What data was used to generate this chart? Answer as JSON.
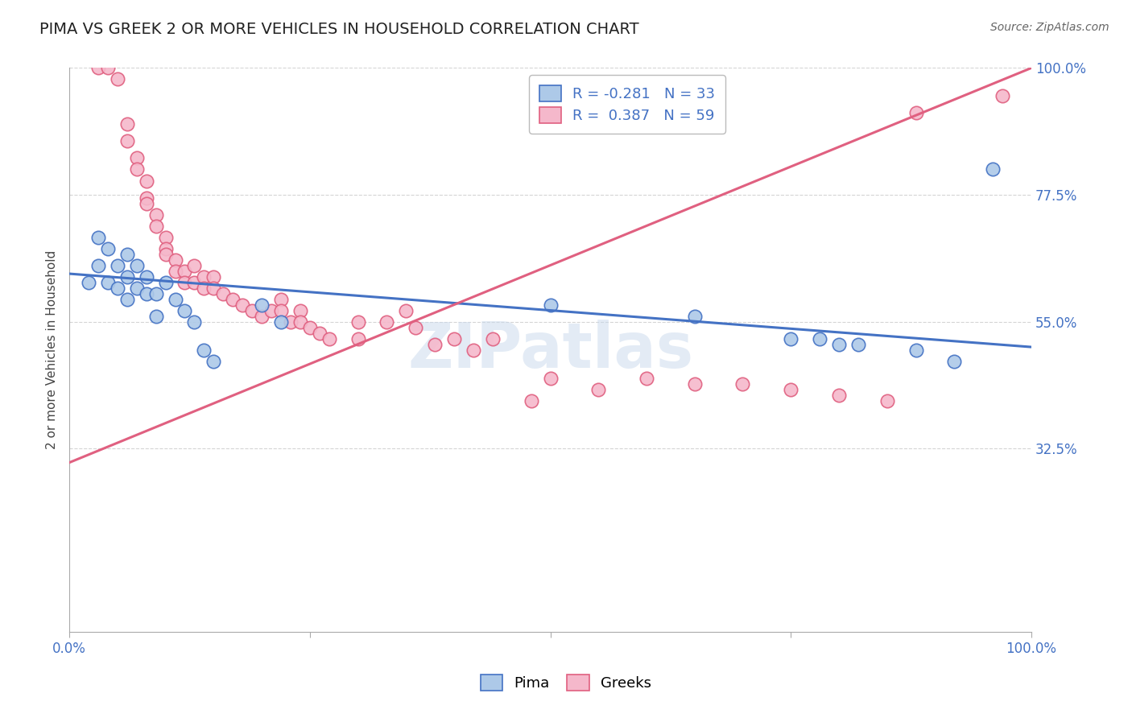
{
  "title": "PIMA VS GREEK 2 OR MORE VEHICLES IN HOUSEHOLD CORRELATION CHART",
  "source": "Source: ZipAtlas.com",
  "ylabel": "2 or more Vehicles in Household",
  "watermark": "ZIPatlas",
  "xlim": [
    0.0,
    1.0
  ],
  "ylim": [
    0.0,
    1.0
  ],
  "legend_r_pima": "-0.281",
  "legend_n_pima": "33",
  "legend_r_greek": "0.387",
  "legend_n_greek": "59",
  "pima_color": "#adc9e8",
  "greek_color": "#f5b8cb",
  "pima_line_color": "#4472c4",
  "greek_line_color": "#e06080",
  "pima_scatter": [
    [
      0.02,
      0.62
    ],
    [
      0.03,
      0.7
    ],
    [
      0.03,
      0.65
    ],
    [
      0.04,
      0.68
    ],
    [
      0.04,
      0.62
    ],
    [
      0.05,
      0.65
    ],
    [
      0.05,
      0.61
    ],
    [
      0.06,
      0.67
    ],
    [
      0.06,
      0.63
    ],
    [
      0.06,
      0.59
    ],
    [
      0.07,
      0.65
    ],
    [
      0.07,
      0.61
    ],
    [
      0.08,
      0.63
    ],
    [
      0.08,
      0.6
    ],
    [
      0.09,
      0.56
    ],
    [
      0.09,
      0.6
    ],
    [
      0.1,
      0.62
    ],
    [
      0.11,
      0.59
    ],
    [
      0.12,
      0.57
    ],
    [
      0.13,
      0.55
    ],
    [
      0.14,
      0.5
    ],
    [
      0.15,
      0.48
    ],
    [
      0.2,
      0.58
    ],
    [
      0.22,
      0.55
    ],
    [
      0.5,
      0.58
    ],
    [
      0.65,
      0.56
    ],
    [
      0.75,
      0.52
    ],
    [
      0.78,
      0.52
    ],
    [
      0.8,
      0.51
    ],
    [
      0.82,
      0.51
    ],
    [
      0.88,
      0.5
    ],
    [
      0.92,
      0.48
    ],
    [
      0.96,
      0.82
    ]
  ],
  "greek_scatter": [
    [
      0.03,
      1.0
    ],
    [
      0.04,
      1.0
    ],
    [
      0.05,
      0.98
    ],
    [
      0.06,
      0.9
    ],
    [
      0.06,
      0.87
    ],
    [
      0.07,
      0.84
    ],
    [
      0.07,
      0.82
    ],
    [
      0.08,
      0.8
    ],
    [
      0.08,
      0.77
    ],
    [
      0.08,
      0.76
    ],
    [
      0.09,
      0.74
    ],
    [
      0.09,
      0.72
    ],
    [
      0.1,
      0.7
    ],
    [
      0.1,
      0.68
    ],
    [
      0.1,
      0.67
    ],
    [
      0.11,
      0.66
    ],
    [
      0.11,
      0.64
    ],
    [
      0.12,
      0.64
    ],
    [
      0.12,
      0.62
    ],
    [
      0.13,
      0.62
    ],
    [
      0.13,
      0.65
    ],
    [
      0.14,
      0.63
    ],
    [
      0.14,
      0.61
    ],
    [
      0.15,
      0.63
    ],
    [
      0.15,
      0.61
    ],
    [
      0.16,
      0.6
    ],
    [
      0.17,
      0.59
    ],
    [
      0.18,
      0.58
    ],
    [
      0.19,
      0.57
    ],
    [
      0.2,
      0.56
    ],
    [
      0.21,
      0.57
    ],
    [
      0.22,
      0.59
    ],
    [
      0.22,
      0.57
    ],
    [
      0.23,
      0.55
    ],
    [
      0.24,
      0.57
    ],
    [
      0.24,
      0.55
    ],
    [
      0.25,
      0.54
    ],
    [
      0.26,
      0.53
    ],
    [
      0.27,
      0.52
    ],
    [
      0.3,
      0.55
    ],
    [
      0.3,
      0.52
    ],
    [
      0.33,
      0.55
    ],
    [
      0.35,
      0.57
    ],
    [
      0.36,
      0.54
    ],
    [
      0.38,
      0.51
    ],
    [
      0.4,
      0.52
    ],
    [
      0.42,
      0.5
    ],
    [
      0.44,
      0.52
    ],
    [
      0.48,
      0.41
    ],
    [
      0.5,
      0.45
    ],
    [
      0.55,
      0.43
    ],
    [
      0.6,
      0.45
    ],
    [
      0.65,
      0.44
    ],
    [
      0.7,
      0.44
    ],
    [
      0.75,
      0.43
    ],
    [
      0.8,
      0.42
    ],
    [
      0.85,
      0.41
    ],
    [
      0.88,
      0.92
    ],
    [
      0.97,
      0.95
    ]
  ],
  "grid_color": "#d0d0d0",
  "bg_color": "#ffffff",
  "title_fontsize": 14,
  "label_fontsize": 11,
  "tick_fontsize": 12
}
